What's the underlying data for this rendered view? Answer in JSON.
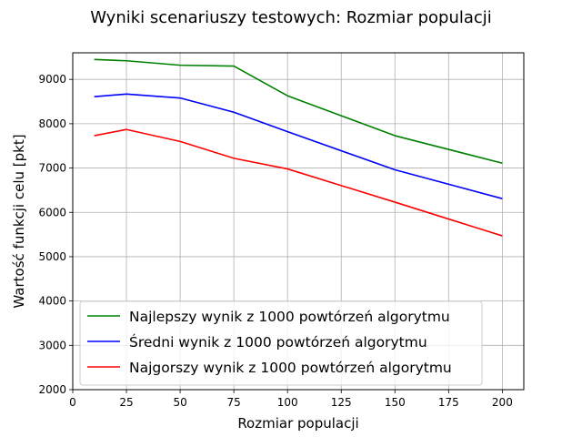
{
  "chart_data": {
    "type": "line",
    "title": "Wyniki scenariuszy testowych: Rozmiar populacji",
    "xlabel": "Rozmiar populacji",
    "ylabel": "Wartość funkcji celu [pkt]",
    "x": [
      10,
      25,
      50,
      75,
      100,
      150,
      200
    ],
    "xlim": [
      0,
      210
    ],
    "ylim": [
      2000,
      9600
    ],
    "xticks": [
      0,
      25,
      50,
      75,
      100,
      125,
      150,
      175,
      200
    ],
    "yticks": [
      2000,
      3000,
      4000,
      5000,
      6000,
      7000,
      8000,
      9000
    ],
    "grid": true,
    "legend_position": "lower-left",
    "series": [
      {
        "name": "Najlepszy wynik z 1000 powtórzeń algorytmu",
        "color": "#008000",
        "values": [
          9450,
          9420,
          9320,
          9300,
          8630,
          7730,
          7110
        ]
      },
      {
        "name": "Średni wynik z 1000 powtórzeń algorytmu",
        "color": "#0000ff",
        "values": [
          8610,
          8670,
          8580,
          8260,
          7820,
          6960,
          6310
        ]
      },
      {
        "name": "Najgorszy wynik z 1000 powtórzeń algorytmu",
        "color": "#ff0000",
        "values": [
          7730,
          7870,
          7600,
          7220,
          6980,
          6230,
          5470
        ]
      }
    ]
  }
}
